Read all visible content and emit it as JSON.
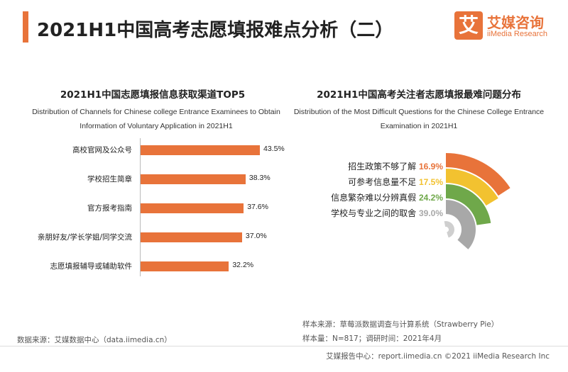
{
  "page": {
    "title": "2021H1中国高考志愿填报难点分析（二）"
  },
  "logo": {
    "mark": "艾",
    "cn": "艾媒咨询",
    "en": "iiMedia Research"
  },
  "left_chart": {
    "title": "2021H1中国志愿填报信息获取渠道TOP5",
    "subtitle": "Distribution of Channels for Chinese college Entrance Examinees to Obtain Information of Voluntary Application in 2021H1"
  },
  "right_chart": {
    "title": "2021H1中国高考关注者志愿填报最难问题分布",
    "subtitle": "Distribution of the Most Difficult Questions for the Chinese College Entrance Examination in 2021H1"
  },
  "chart_data": [
    {
      "type": "bar",
      "orientation": "horizontal",
      "title": "2021H1中国志愿填报信息获取渠道TOP5",
      "categories": [
        "高校官网及公众号",
        "学校招生简章",
        "官方报考指南",
        "亲朋好友/学长学姐/同学交流",
        "志愿填报辅导或辅助软件"
      ],
      "values": [
        43.5,
        38.3,
        37.6,
        37.0,
        32.2
      ],
      "value_labels": [
        "43.5%",
        "38.3%",
        "37.6%",
        "37.0%",
        "32.2%"
      ],
      "unit": "%",
      "color": "#e8733a",
      "xlim": [
        0,
        45
      ]
    },
    {
      "type": "radial-bar",
      "title": "2021H1中国高考关注者志愿填报最难问题分布",
      "categories": [
        "招生政策不够了解",
        "可参考信息量不足",
        "信息繁杂难以分辨真假",
        "学校与专业之间的取舍"
      ],
      "values": [
        16.9,
        17.5,
        24.2,
        39.0
      ],
      "value_labels": [
        "16.9%",
        "17.5%",
        "24.2%",
        "39.0%"
      ],
      "unit": "%",
      "colors": [
        "#e8733a",
        "#f2c230",
        "#6fa84a",
        "#a8a8a8"
      ]
    }
  ],
  "source": {
    "left": "数据来源：艾媒数据中心（data.iimedia.cn）",
    "right_line1": "样本来源：草莓派数据调查与计算系统（Strawberry Pie）",
    "right_line2": "样本量：N=817；调研时间：2021年4月"
  },
  "footer": {
    "text": "艾媒报告中心：report.iimedia.cn ©2021 iiMedia Research Inc"
  }
}
